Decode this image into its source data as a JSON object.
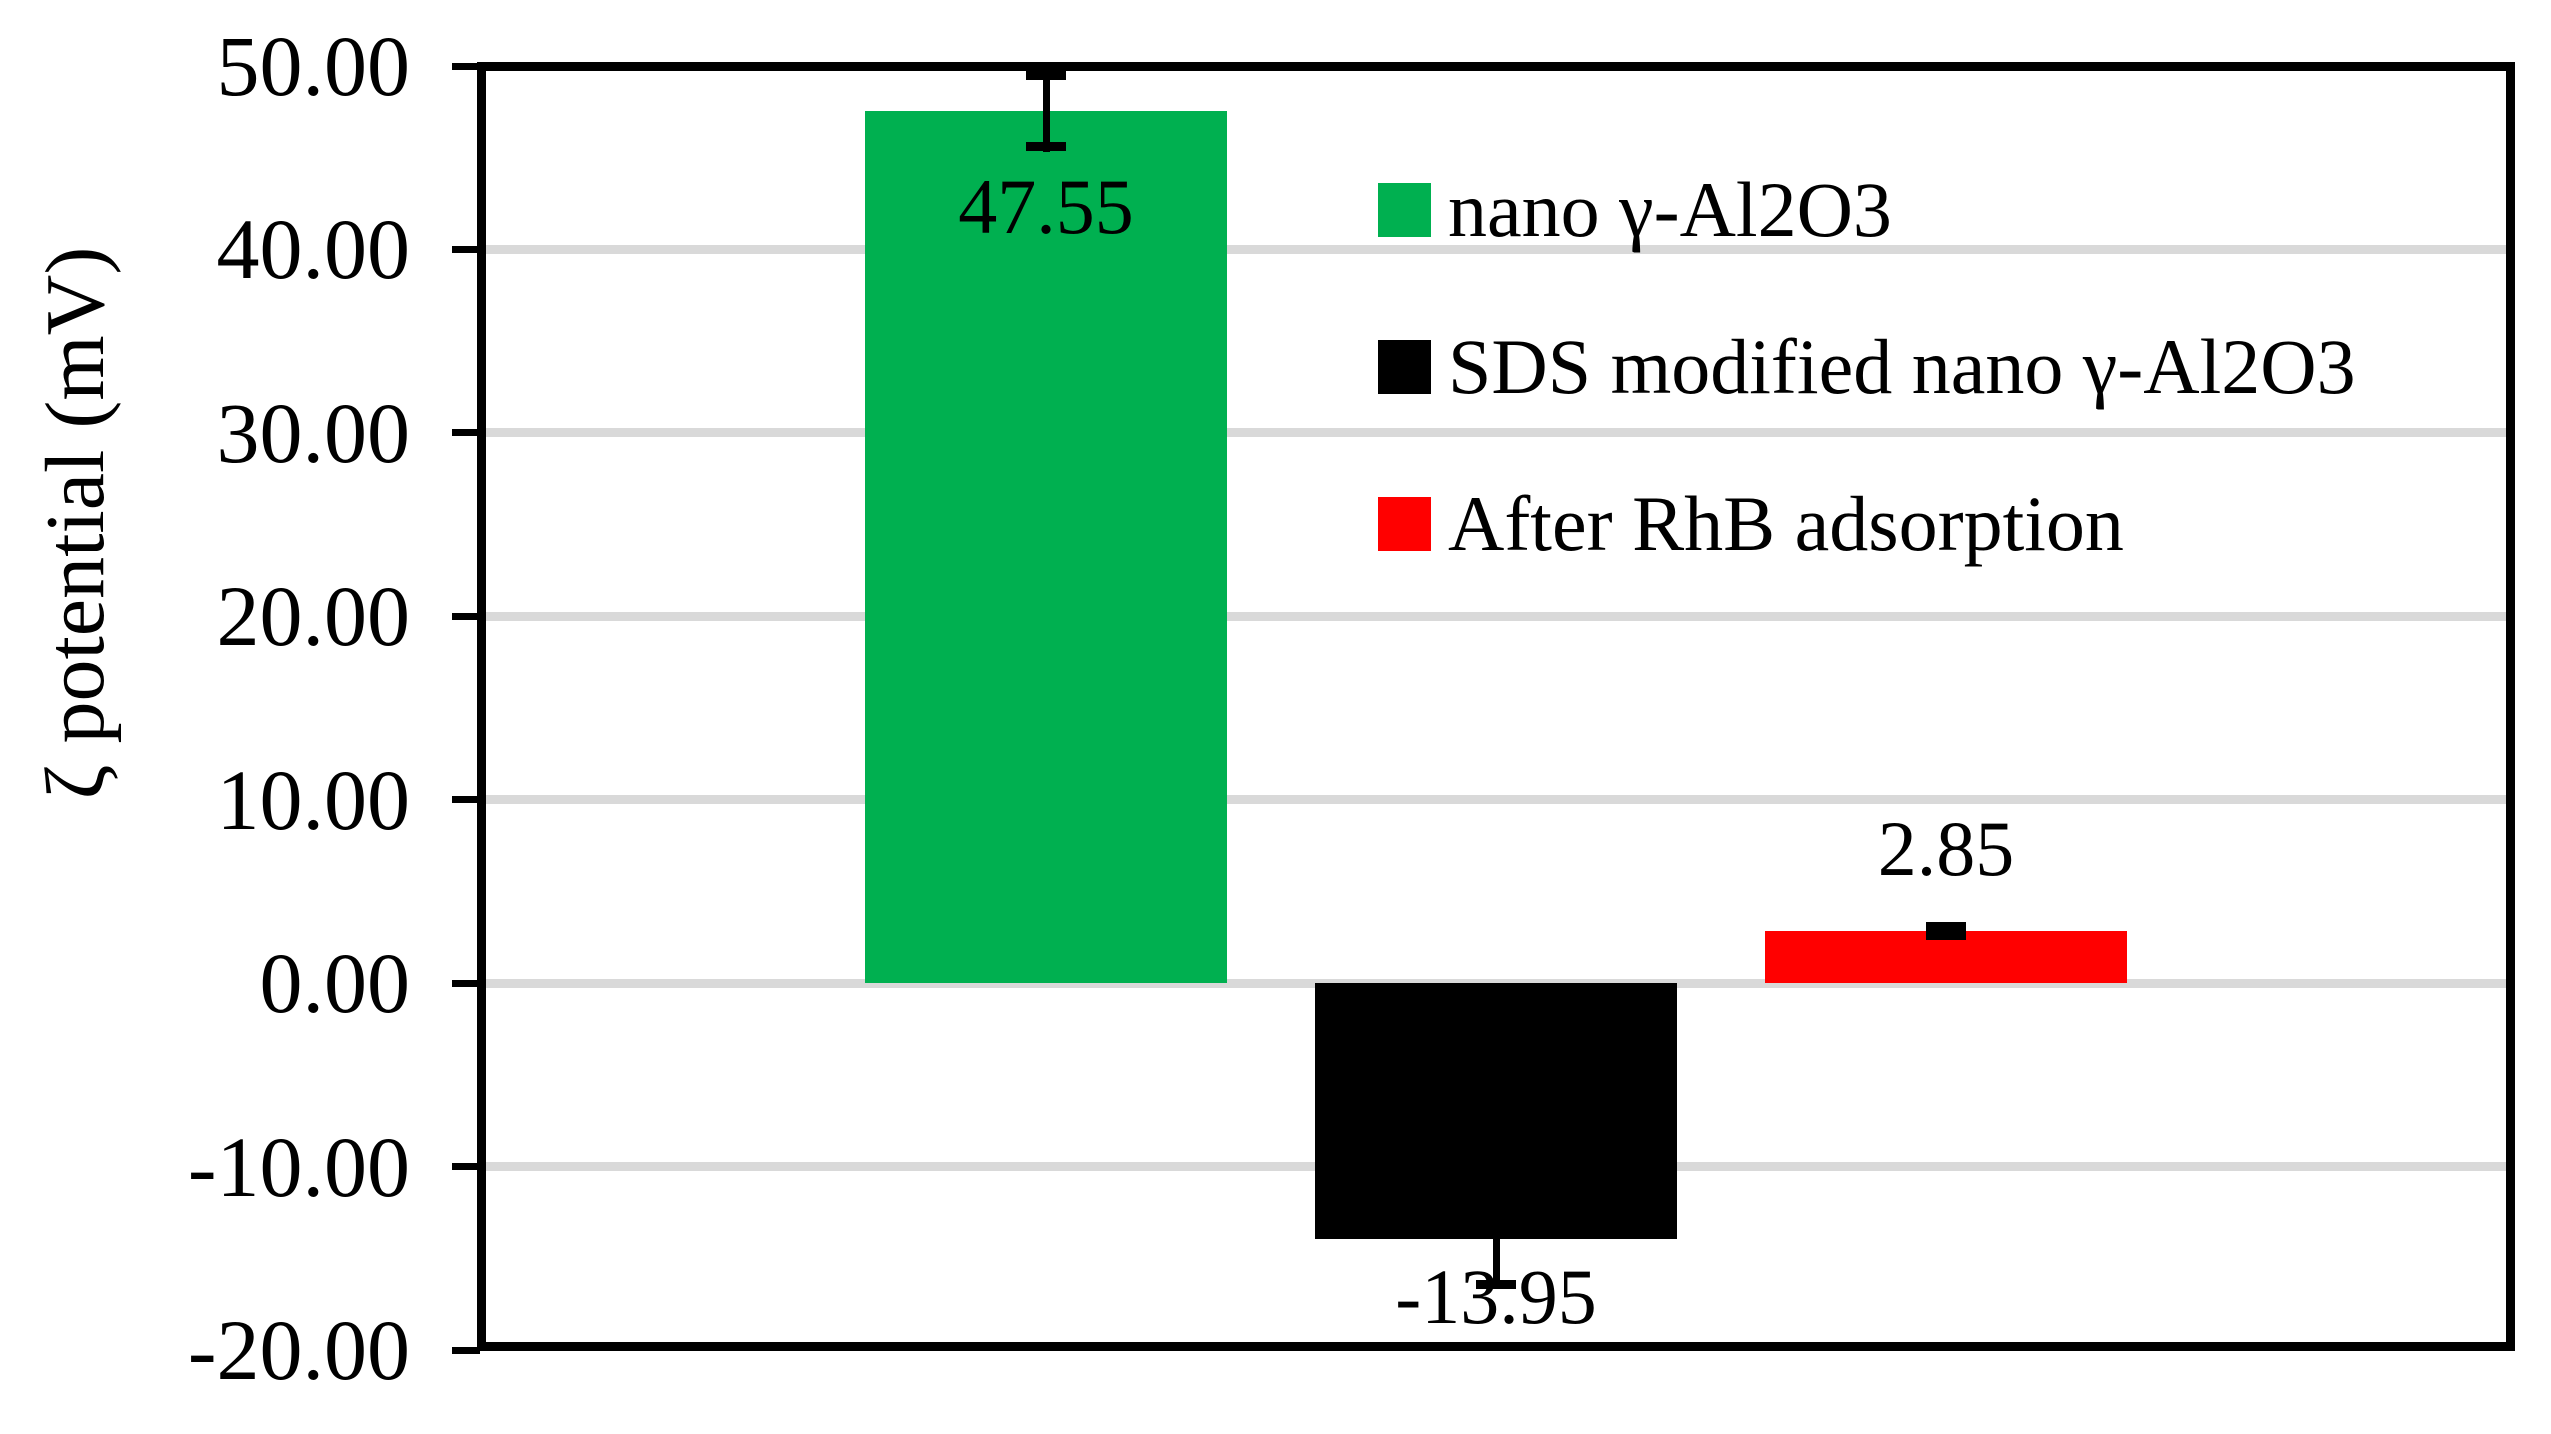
{
  "chart_data": {
    "type": "bar",
    "title": "",
    "xlabel": "",
    "ylabel": "ζ potential (mV)",
    "ylim": [
      -20,
      50
    ],
    "ytick_step": 10,
    "ytick_values": [
      50,
      40,
      30,
      20,
      10,
      0,
      -10,
      -20
    ],
    "ytick_labels": [
      "50.00",
      "40.00",
      "30.00",
      "20.00",
      "10.00",
      "0.00",
      "-10.00",
      "-20.00"
    ],
    "grid": true,
    "categories": [
      ""
    ],
    "series": [
      {
        "name": "nano γ-Al2O3",
        "value": 47.55,
        "label": "47.55",
        "error": 2.2,
        "color": "#00B050"
      },
      {
        "name": "SDS modified nano γ-Al2O3",
        "value": -13.95,
        "label": "-13.95",
        "error": 2.7,
        "color": "#000000"
      },
      {
        "name": "After RhB adsorption",
        "value": 2.85,
        "label": "2.85",
        "error": 0.5,
        "color": "#FF0000"
      }
    ],
    "legend_position": "inside-top-right",
    "colors": {
      "gridline": "#D9D9D9",
      "axis": "#000000",
      "text": "#000000"
    }
  }
}
